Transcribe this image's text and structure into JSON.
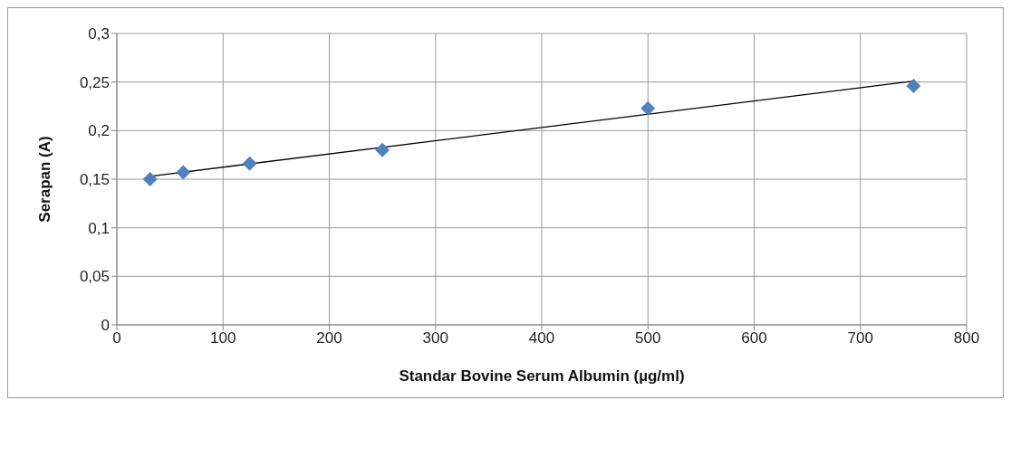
{
  "chart_data": {
    "type": "scatter",
    "xlabel": "Standar Bovine Serum Albumin (µg/ml)",
    "ylabel": "Serapan (A)",
    "series": [
      {
        "color": "#4f81bd",
        "x": [
          31.25,
          62.5,
          125,
          250,
          500,
          750
        ],
        "values": [
          0.15,
          0.157,
          0.166,
          0.18,
          0.223,
          0.246
        ],
        "marker": "diamond"
      },
      {
        "type": "line",
        "color": "#000000",
        "x": [
          31.25,
          750
        ],
        "values": [
          0.153,
          0.251
        ],
        "marker": "none",
        "line_style": "solid"
      }
    ],
    "xlim": [
      0,
      800
    ],
    "xticks": [
      0,
      100,
      200,
      300,
      400,
      500,
      600,
      700,
      800
    ],
    "ylim": [
      0,
      0.3
    ],
    "yticks": [
      0,
      {
        "value": 0.05,
        "label": "0,05"
      },
      {
        "value": 0.1,
        "label": "0,1"
      },
      {
        "value": 0.15,
        "label": "0,15"
      },
      {
        "value": 0.2,
        "label": "0,2"
      },
      {
        "value": 0.25,
        "label": "0,25"
      },
      {
        "value": 0.3,
        "label": "0,3"
      }
    ],
    "grid": true
  }
}
